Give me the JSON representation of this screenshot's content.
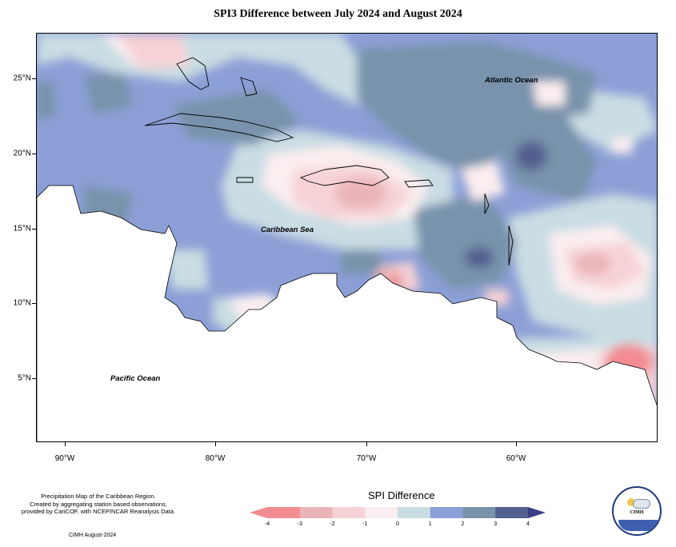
{
  "title": "SPI3 Difference between July 2024 and August 2024",
  "map": {
    "lat_labels": [
      "25°N",
      "20°N",
      "15°N",
      "10°N",
      "5°N"
    ],
    "lon_labels": [
      "90°W",
      "80°W",
      "70°W",
      "60°W"
    ],
    "ocean_labels": {
      "atlantic": "Atlantic Ocean",
      "caribbean": "Caribbean Sea",
      "pacific": "Pacific Ocean"
    }
  },
  "legend": {
    "title": "SPI Difference",
    "ticks": [
      "-4",
      "-3",
      "-2",
      "-1",
      "0",
      "1",
      "2",
      "3",
      "4"
    ],
    "colors": [
      "#f28c92",
      "#eab5b8",
      "#f6d2d6",
      "#fbeef0",
      "#c9dde3",
      "#8c9fd6",
      "#7893ab",
      "#525f8f"
    ]
  },
  "credits": {
    "line1": "Precipitation Map of the Caribbean Region.",
    "line2": "Created by aggregating station based observations,",
    "line3": "provided by CariCOF, with NCEP/NCAR Reanalysis Data.",
    "date": "CIMH August-2024"
  },
  "logo": {
    "text": "CIMH"
  }
}
